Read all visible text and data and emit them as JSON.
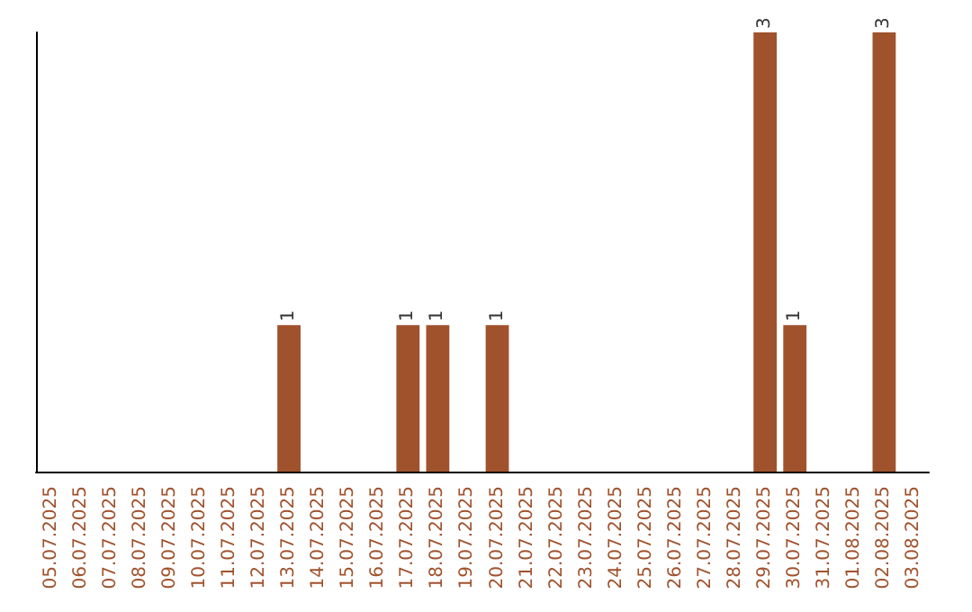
{
  "chart_data": {
    "type": "bar",
    "categories": [
      "05.07.2025",
      "06.07.2025",
      "07.07.2025",
      "08.07.2025",
      "09.07.2025",
      "10.07.2025",
      "11.07.2025",
      "12.07.2025",
      "13.07.2025",
      "14.07.2025",
      "15.07.2025",
      "16.07.2025",
      "17.07.2025",
      "18.07.2025",
      "19.07.2025",
      "20.07.2025",
      "21.07.2025",
      "22.07.2025",
      "23.07.2025",
      "24.07.2025",
      "25.07.2025",
      "26.07.2025",
      "27.07.2025",
      "28.07.2025",
      "29.07.2025",
      "30.07.2025",
      "31.07.2025",
      "01.08.2025",
      "02.08.2025",
      "03.08.2025"
    ],
    "values": [
      0,
      0,
      0,
      0,
      0,
      0,
      0,
      0,
      1,
      0,
      0,
      0,
      1,
      1,
      0,
      1,
      0,
      0,
      0,
      0,
      0,
      0,
      0,
      0,
      3,
      1,
      0,
      0,
      3,
      0
    ],
    "value_labels": [
      null,
      null,
      null,
      null,
      null,
      null,
      null,
      null,
      "1",
      null,
      null,
      null,
      "1",
      "1",
      null,
      "1",
      null,
      null,
      null,
      null,
      null,
      null,
      null,
      null,
      "3",
      "1",
      null,
      null,
      "3",
      null
    ],
    "color": "#a0522d",
    "ylim": [
      0,
      3
    ],
    "tick_labels": "x"
  }
}
